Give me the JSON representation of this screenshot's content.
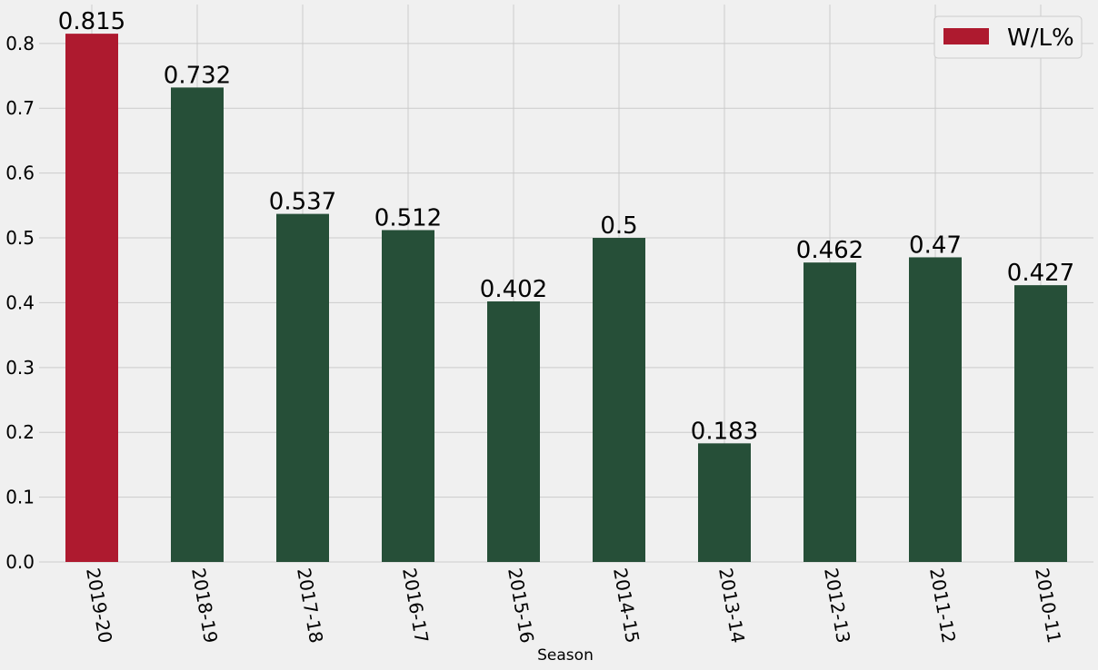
{
  "chart_data": {
    "type": "bar",
    "x_label": "Season",
    "categories": [
      "2019-20",
      "2018-19",
      "2017-18",
      "2016-17",
      "2015-16",
      "2014-15",
      "2013-14",
      "2012-13",
      "2011-12",
      "2010-11"
    ],
    "series": [
      {
        "name": "W/L%",
        "color": "#ae1a2f",
        "values": [
          0.815,
          0.732,
          0.537,
          0.512,
          0.402,
          0.5,
          0.183,
          0.462,
          0.47,
          0.427
        ],
        "bar_colors": [
          "#ae1a2f",
          "#264f38",
          "#264f38",
          "#264f38",
          "#264f38",
          "#264f38",
          "#264f38",
          "#264f38",
          "#264f38",
          "#264f38"
        ]
      }
    ],
    "ylim": [
      0,
      0.86
    ],
    "yticks": [
      {
        "value": 0,
        "label": "0.0"
      },
      0.1,
      0.2,
      0.3,
      0.4,
      0.5,
      0.6,
      0.7,
      0.8
    ],
    "grid": true,
    "legend_position": "upper right"
  }
}
